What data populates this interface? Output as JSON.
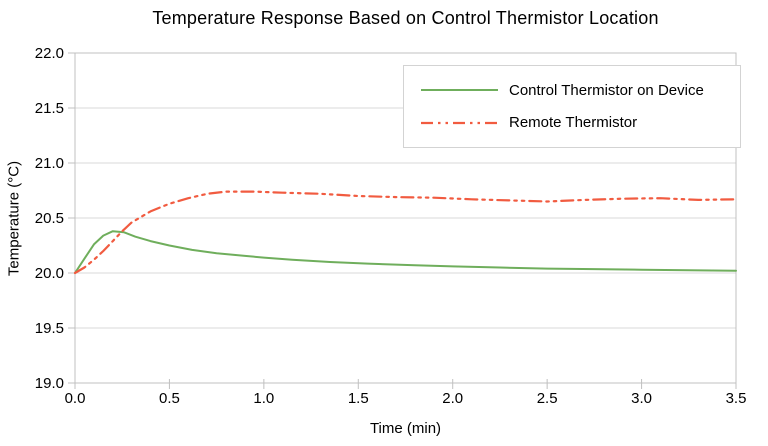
{
  "chart_data": {
    "type": "line",
    "title": "Temperature Response Based on Control Thermistor Location",
    "xlabel": "Time (min)",
    "ylabel": "Temperature (°C)",
    "xlim": [
      0.0,
      3.5
    ],
    "ylim": [
      19.0,
      22.0
    ],
    "xticks": [
      0.0,
      0.5,
      1.0,
      1.5,
      2.0,
      2.5,
      3.0,
      3.5
    ],
    "yticks": [
      19.0,
      19.5,
      20.0,
      20.5,
      21.0,
      21.5,
      22.0
    ],
    "xtick_labels": [
      "0.0",
      "0.5",
      "1.0",
      "1.5",
      "2.0",
      "2.5",
      "3.0",
      "3.5"
    ],
    "ytick_labels": [
      "19.0",
      "19.5",
      "20.0",
      "20.5",
      "21.0",
      "21.5",
      "22.0"
    ],
    "grid": "horizontal-only",
    "legend_position": "top-right",
    "series": [
      {
        "name": "Control Thermistor on Device",
        "color": "#6fae5c",
        "style": "solid",
        "stroke_width": 2,
        "points": [
          [
            0.0,
            20.0
          ],
          [
            0.05,
            20.13
          ],
          [
            0.1,
            20.26
          ],
          [
            0.15,
            20.34
          ],
          [
            0.2,
            20.38
          ],
          [
            0.26,
            20.37
          ],
          [
            0.32,
            20.33
          ],
          [
            0.4,
            20.29
          ],
          [
            0.5,
            20.25
          ],
          [
            0.62,
            20.21
          ],
          [
            0.75,
            20.18
          ],
          [
            0.9,
            20.155
          ],
          [
            1.0,
            20.14
          ],
          [
            1.15,
            20.12
          ],
          [
            1.35,
            20.1
          ],
          [
            1.55,
            20.085
          ],
          [
            1.8,
            20.07
          ],
          [
            2.0,
            20.06
          ],
          [
            2.25,
            20.05
          ],
          [
            2.5,
            20.04
          ],
          [
            2.75,
            20.035
          ],
          [
            3.0,
            20.03
          ],
          [
            3.25,
            20.025
          ],
          [
            3.5,
            20.02
          ]
        ]
      },
      {
        "name": "Remote Thermistor",
        "color": "#f15b40",
        "style": "dash-dot-dot",
        "stroke_width": 2.2,
        "points": [
          [
            0.0,
            20.0
          ],
          [
            0.05,
            20.05
          ],
          [
            0.1,
            20.12
          ],
          [
            0.15,
            20.2
          ],
          [
            0.2,
            20.29
          ],
          [
            0.25,
            20.38
          ],
          [
            0.3,
            20.46
          ],
          [
            0.4,
            20.56
          ],
          [
            0.5,
            20.63
          ],
          [
            0.6,
            20.68
          ],
          [
            0.7,
            20.72
          ],
          [
            0.8,
            20.74
          ],
          [
            0.95,
            20.74
          ],
          [
            1.1,
            20.73
          ],
          [
            1.3,
            20.72
          ],
          [
            1.5,
            20.7
          ],
          [
            1.7,
            20.69
          ],
          [
            1.9,
            20.685
          ],
          [
            2.1,
            20.67
          ],
          [
            2.3,
            20.66
          ],
          [
            2.5,
            20.65
          ],
          [
            2.7,
            20.665
          ],
          [
            2.9,
            20.675
          ],
          [
            3.1,
            20.68
          ],
          [
            3.3,
            20.665
          ],
          [
            3.5,
            20.67
          ]
        ]
      }
    ]
  },
  "colors": {
    "background": "#ffffff",
    "gridline": "#d9d9d9",
    "axis": "#c0c0c0",
    "text": "#000000",
    "legend_border": "#d3d3d3"
  }
}
